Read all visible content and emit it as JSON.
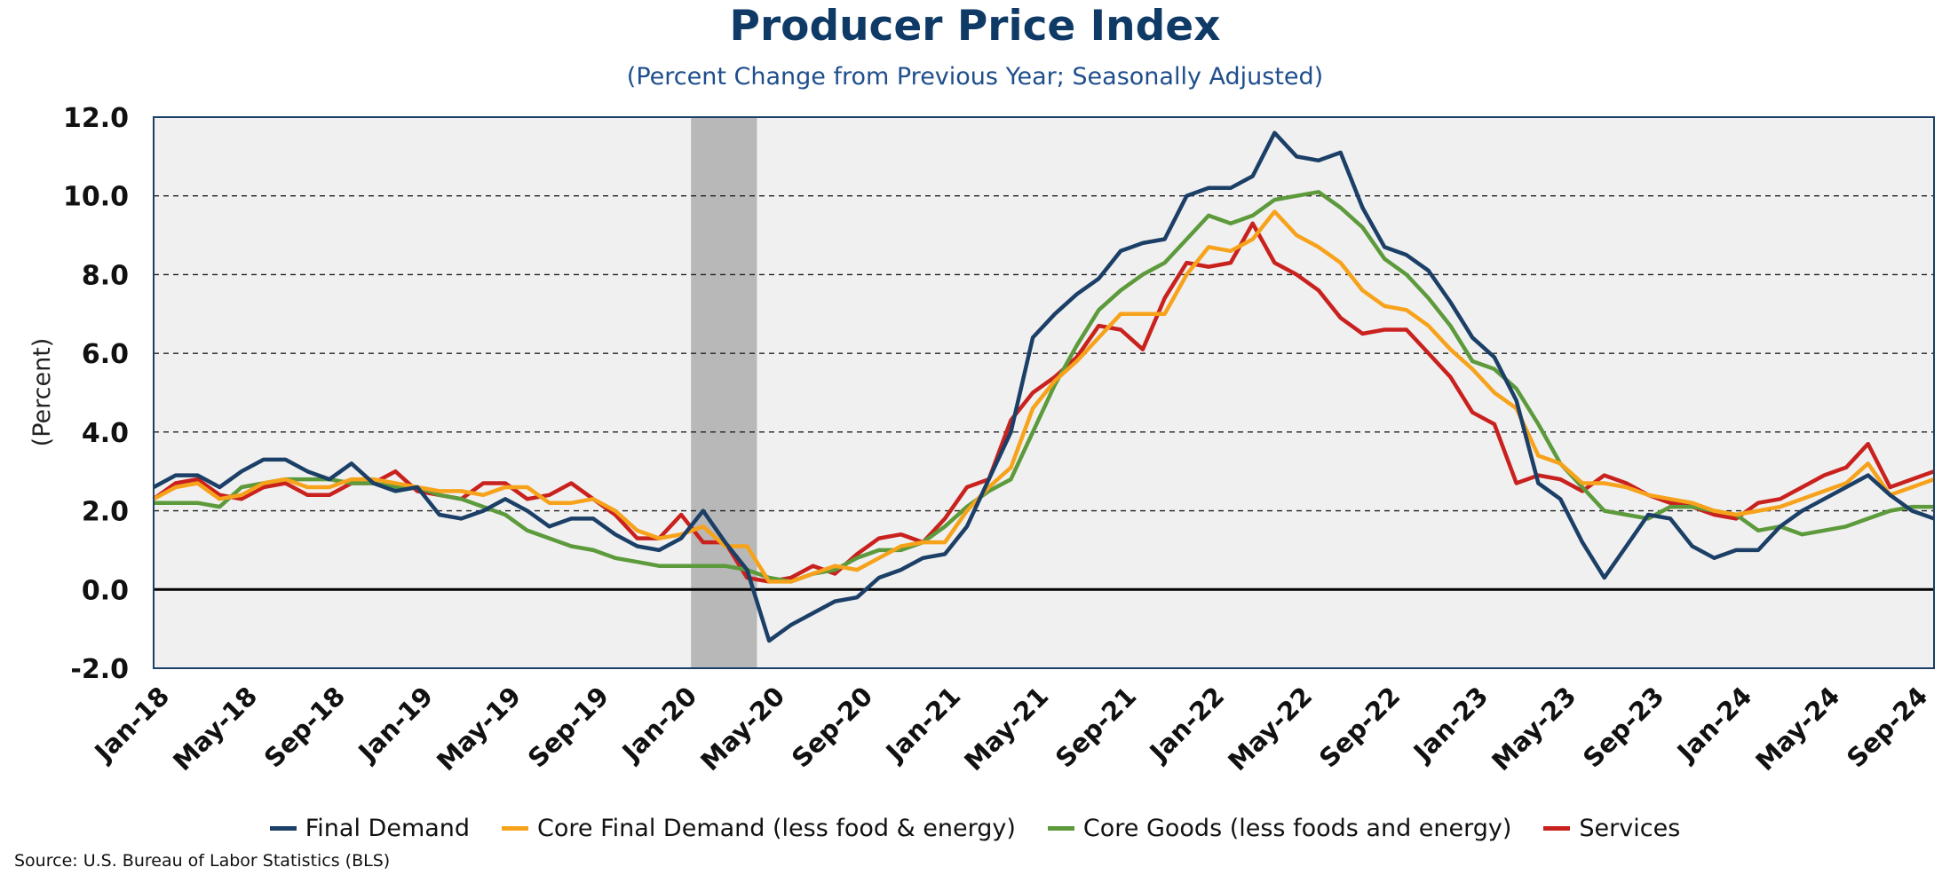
{
  "chart_data": {
    "type": "line",
    "title": "Producer Price Index",
    "subtitle": "(Percent Change from Previous Year; Seasonally Adjusted)",
    "ylabel": "(Percent)",
    "xlabel": "",
    "ylim": [
      -2,
      12
    ],
    "yticks": [
      "-2.0",
      "0.0",
      "2.0",
      "4.0",
      "6.0",
      "8.0",
      "10.0",
      "12.0"
    ],
    "x_start": "Jan-18",
    "x_end": "Sep-24",
    "xtick_labels": [
      "Jan-18",
      "May-18",
      "Sep-18",
      "Jan-19",
      "May-19",
      "Sep-19",
      "Jan-20",
      "May-20",
      "Sep-20",
      "Jan-21",
      "May-21",
      "Sep-21",
      "Jan-22",
      "May-22",
      "Sep-22",
      "Jan-23",
      "May-23",
      "Sep-23",
      "Jan-24",
      "May-24",
      "Sep-24"
    ],
    "grid": "horizontal dashed",
    "legend_position": "bottom",
    "recession_shading": {
      "start": "Feb-20",
      "end": "Apr-20",
      "color": "#b8b8b8"
    },
    "series": [
      {
        "name": "Final Demand",
        "color": "#1b3f66",
        "values": [
          2.6,
          2.9,
          2.9,
          2.6,
          3.0,
          3.3,
          3.3,
          3.0,
          2.8,
          3.2,
          2.7,
          2.5,
          2.6,
          1.9,
          1.8,
          2.0,
          2.3,
          2.0,
          1.6,
          1.8,
          1.8,
          1.4,
          1.1,
          1.0,
          1.3,
          2.0,
          1.2,
          0.5,
          -1.3,
          -0.9,
          -0.6,
          -0.3,
          -0.2,
          0.3,
          0.5,
          0.8,
          0.9,
          1.6,
          2.8,
          4.0,
          6.4,
          7.0,
          7.5,
          7.9,
          8.6,
          8.8,
          8.9,
          10.0,
          10.2,
          10.2,
          10.5,
          11.6,
          11.0,
          10.9,
          11.1,
          9.7,
          8.7,
          8.5,
          8.1,
          7.3,
          6.4,
          5.9,
          4.8,
          2.7,
          2.3,
          1.2,
          0.3,
          1.1,
          1.9,
          1.8,
          1.1,
          0.8,
          1.0,
          1.0,
          1.6,
          2.0,
          2.3,
          2.6,
          2.9,
          2.4,
          2.0,
          1.8
        ]
      },
      {
        "name": "Core Final Demand (less food & energy)",
        "color": "#f7a21b",
        "values": [
          2.3,
          2.6,
          2.7,
          2.3,
          2.4,
          2.7,
          2.8,
          2.6,
          2.6,
          2.8,
          2.8,
          2.7,
          2.6,
          2.5,
          2.5,
          2.4,
          2.6,
          2.6,
          2.2,
          2.2,
          2.3,
          2.0,
          1.5,
          1.3,
          1.4,
          1.6,
          1.1,
          1.1,
          0.2,
          0.2,
          0.4,
          0.6,
          0.5,
          0.8,
          1.1,
          1.2,
          1.2,
          2.0,
          2.6,
          3.1,
          4.6,
          5.3,
          5.8,
          6.4,
          7.0,
          7.0,
          7.0,
          8.0,
          8.7,
          8.6,
          8.9,
          9.6,
          9.0,
          8.7,
          8.3,
          7.6,
          7.2,
          7.1,
          6.7,
          6.1,
          5.6,
          5.0,
          4.6,
          3.4,
          3.2,
          2.7,
          2.7,
          2.6,
          2.4,
          2.3,
          2.2,
          2.0,
          1.9,
          2.0,
          2.1,
          2.3,
          2.5,
          2.7,
          3.2,
          2.4,
          2.6,
          2.8
        ]
      },
      {
        "name": "Core Goods (less foods and energy)",
        "color": "#5c9a3c",
        "values": [
          2.2,
          2.2,
          2.2,
          2.1,
          2.6,
          2.7,
          2.8,
          2.8,
          2.8,
          2.7,
          2.7,
          2.6,
          2.6,
          2.4,
          2.3,
          2.1,
          1.9,
          1.5,
          1.3,
          1.1,
          1.0,
          0.8,
          0.7,
          0.6,
          0.6,
          0.6,
          0.6,
          0.5,
          0.3,
          0.2,
          0.4,
          0.5,
          0.8,
          1.0,
          1.0,
          1.2,
          1.6,
          2.1,
          2.5,
          2.8,
          4.0,
          5.2,
          6.2,
          7.1,
          7.6,
          8.0,
          8.3,
          8.9,
          9.5,
          9.3,
          9.5,
          9.9,
          10.0,
          10.1,
          9.7,
          9.2,
          8.4,
          8.0,
          7.4,
          6.7,
          5.8,
          5.6,
          5.1,
          4.2,
          3.2,
          2.6,
          2.0,
          1.9,
          1.8,
          2.1,
          2.1,
          2.0,
          1.9,
          1.5,
          1.6,
          1.4,
          1.5,
          1.6,
          1.8,
          2.0,
          2.1,
          2.1
        ]
      },
      {
        "name": "Services",
        "color": "#c9211e",
        "values": [
          2.3,
          2.7,
          2.8,
          2.4,
          2.3,
          2.6,
          2.7,
          2.4,
          2.4,
          2.7,
          2.7,
          3.0,
          2.5,
          2.4,
          2.3,
          2.7,
          2.7,
          2.3,
          2.4,
          2.7,
          2.3,
          1.9,
          1.3,
          1.3,
          1.9,
          1.2,
          1.2,
          0.3,
          0.2,
          0.3,
          0.6,
          0.4,
          0.9,
          1.3,
          1.4,
          1.2,
          1.8,
          2.6,
          2.8,
          4.3,
          5.0,
          5.4,
          5.9,
          6.7,
          6.6,
          6.1,
          7.4,
          8.3,
          8.2,
          8.3,
          9.3,
          8.3,
          8.0,
          7.6,
          6.9,
          6.5,
          6.6,
          6.6,
          6.0,
          5.4,
          4.5,
          4.2,
          2.7,
          2.9,
          2.8,
          2.5,
          2.9,
          2.7,
          2.4,
          2.2,
          2.1,
          1.9,
          1.8,
          2.2,
          2.3,
          2.6,
          2.9,
          3.1,
          3.7,
          2.6,
          2.8,
          3.0
        ]
      }
    ]
  },
  "source_note": "Source: U.S. Bureau of Labor Statistics (BLS)"
}
